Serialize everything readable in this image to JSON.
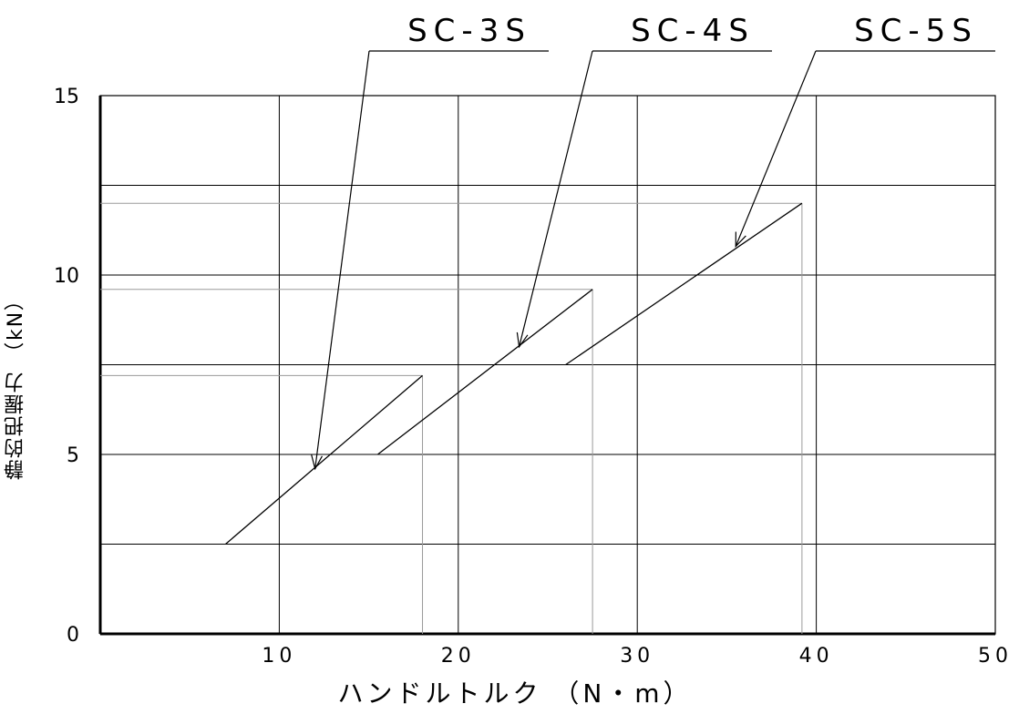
{
  "chart_data": {
    "type": "line",
    "title": "",
    "xlabel": "ハンドルトルク （N・m）",
    "ylabel": "静的把握力 （kN）",
    "xlim": [
      0,
      50
    ],
    "ylim": [
      0,
      15
    ],
    "x_ticks": [
      "10",
      "20",
      "30",
      "40",
      "50"
    ],
    "y_ticks": [
      "0",
      "5",
      "10",
      "15"
    ],
    "grid": true,
    "series": [
      {
        "name": "SC-3S",
        "x": [
          7,
          18
        ],
        "y": [
          2.5,
          7.2
        ],
        "max": {
          "x": 18,
          "y": 7.2
        }
      },
      {
        "name": "SC-4S",
        "x": [
          15.5,
          27.5
        ],
        "y": [
          5,
          9.6
        ],
        "max": {
          "x": 27.5,
          "y": 9.6
        }
      },
      {
        "name": "SC-5S",
        "x": [
          26,
          39.2
        ],
        "y": [
          7.5,
          12
        ],
        "max": {
          "x": 39.2,
          "y": 12
        }
      }
    ],
    "annotations": [
      {
        "text": "SC-3S",
        "series": 0,
        "arrow_to": {
          "x": 12,
          "y": 4.6
        }
      },
      {
        "text": "SC-4S",
        "series": 1,
        "arrow_to": {
          "x": 23.4,
          "y": 8
        }
      },
      {
        "text": "SC-5S",
        "series": 2,
        "arrow_to": {
          "x": 35.5,
          "y": 10.8
        }
      }
    ]
  }
}
